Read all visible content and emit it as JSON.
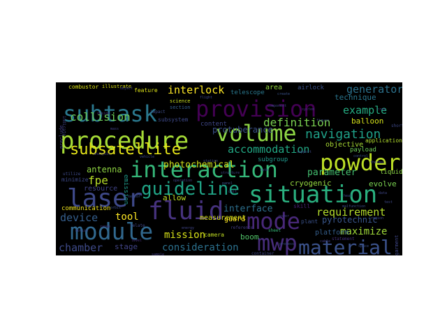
{
  "figure": {
    "type": "word_cloud",
    "background": "#000000",
    "palette": "viridis"
  },
  "words": [
    {
      "text": "procedure",
      "color": "#a5db36"
    },
    {
      "text": "volume",
      "color": "#8ed645"
    },
    {
      "text": "interaction",
      "color": "#35b779"
    },
    {
      "text": "situation",
      "color": "#2ab07f"
    },
    {
      "text": "fluid",
      "color": "#46327e"
    },
    {
      "text": "module",
      "color": "#31688e"
    },
    {
      "text": "mode",
      "color": "#482878"
    },
    {
      "text": "subtask",
      "color": "#2a788e"
    },
    {
      "text": "provision",
      "color": "#440154"
    },
    {
      "text": "laser",
      "color": "#3e4989"
    },
    {
      "text": "powder",
      "color": "#bddf26"
    },
    {
      "text": "mwp",
      "color": "#472d7b"
    },
    {
      "text": "guideline",
      "color": "#20a486"
    },
    {
      "text": "subsatellite",
      "color": "#e5e419"
    },
    {
      "text": "material",
      "color": "#3b528b"
    },
    {
      "text": "navigation",
      "color": "#1fa088"
    },
    {
      "text": "interlock",
      "color": "#fde725"
    },
    {
      "text": "accommodation",
      "color": "#22a884"
    },
    {
      "text": "collision",
      "color": "#6ccd5a"
    },
    {
      "text": "definition",
      "color": "#7ad151"
    },
    {
      "text": "example",
      "color": "#25ac82"
    },
    {
      "text": "requirement",
      "color": "#b5de2b"
    },
    {
      "text": "generator",
      "color": "#2c728e"
    },
    {
      "text": "consideration",
      "color": "#2c718e"
    },
    {
      "text": "chamber",
      "color": "#3e4a89"
    },
    {
      "text": "mission",
      "color": "#d8e219"
    },
    {
      "text": "maximize",
      "color": "#a0da39"
    },
    {
      "text": "device",
      "color": "#355f8d"
    },
    {
      "text": "antenna",
      "color": "#90d743"
    },
    {
      "text": "parameter",
      "color": "#44bf70"
    },
    {
      "text": "fpe",
      "color": "#b8de29"
    },
    {
      "text": "interface",
      "color": "#2d708e"
    },
    {
      "text": "tool",
      "color": "#fde725"
    },
    {
      "text": "photochemical",
      "color": "#d2e21b"
    },
    {
      "text": "protuberance",
      "color": "#3b528b"
    },
    {
      "text": "technique",
      "color": "#2a768e"
    },
    {
      "text": "pyrotechnic",
      "color": "#39568c"
    },
    {
      "text": "balloon",
      "color": "#d5e21a"
    },
    {
      "text": "evolve",
      "color": "#7ad151"
    },
    {
      "text": "platform",
      "color": "#355f8d"
    },
    {
      "text": "boom",
      "color": "#52c569"
    },
    {
      "text": "stage",
      "color": "#414487"
    },
    {
      "text": "cryogenic",
      "color": "#95d840"
    },
    {
      "text": "objective",
      "color": "#a8db34"
    },
    {
      "text": "allow",
      "color": "#c0df25"
    },
    {
      "text": "resource",
      "color": "#404387"
    },
    {
      "text": "measurement",
      "color": "#d8e219"
    },
    {
      "text": "guard",
      "color": "#fde725"
    },
    {
      "text": "area",
      "color": "#95d840"
    },
    {
      "text": "airlock",
      "color": "#3b528b"
    },
    {
      "text": "communication",
      "color": "#f1e51d"
    },
    {
      "text": "subgroup",
      "color": "#1f968b"
    },
    {
      "text": "liquid",
      "color": "#8bd646"
    },
    {
      "text": "payload",
      "color": "#6ece58"
    },
    {
      "text": "application",
      "color": "#b2dd2d"
    },
    {
      "text": "telescope",
      "color": "#2a788e"
    },
    {
      "text": "subsystem",
      "color": "#3e4989"
    },
    {
      "text": "content",
      "color": "#3f4788"
    },
    {
      "text": "combustor",
      "color": "#dde318"
    },
    {
      "text": "feature",
      "color": "#dde318"
    },
    {
      "text": "illustrate",
      "color": "#dde318"
    },
    {
      "text": "science",
      "color": "#cae11f"
    },
    {
      "text": "section",
      "color": "#355f8d"
    },
    {
      "text": "emission",
      "color": "#1f9a8a"
    },
    {
      "text": "minimize",
      "color": "#3e4a89"
    },
    {
      "text": "camera",
      "color": "#c2df23"
    },
    {
      "text": "plant",
      "color": "#3b528b"
    },
    {
      "text": "skill",
      "color": "#482173"
    },
    {
      "text": "impact",
      "color": "#3d4e8a"
    },
    {
      "text": "relate",
      "color": "#404688"
    },
    {
      "text": "statement",
      "color": "#46307e"
    },
    {
      "text": "reference",
      "color": "#433e85"
    },
    {
      "text": "container",
      "color": "#3f4889"
    },
    {
      "text": "sheet",
      "color": "#35b779"
    },
    {
      "text": "short",
      "color": "#3e4989"
    },
    {
      "text": "garment",
      "color": "#3f4788"
    },
    {
      "text": "object",
      "color": "#414487"
    },
    {
      "text": "create",
      "color": "#3b528b"
    },
    {
      "text": "indicate",
      "color": "#404588"
    },
    {
      "text": "preclude",
      "color": "#433e85"
    },
    {
      "text": "utilize",
      "color": "#3e4a89"
    },
    {
      "text": "figure",
      "color": "#3d4d8a"
    },
    {
      "text": "system",
      "color": "#453781"
    },
    {
      "text": "control",
      "color": "#3b528b"
    },
    {
      "text": "vehicle",
      "color": "#3e4a89"
    },
    {
      "text": "operation",
      "color": "#404688"
    },
    {
      "text": "component",
      "color": "#3f4889"
    },
    {
      "text": "analysis",
      "color": "#433e85"
    },
    {
      "text": "design",
      "color": "#46327e"
    },
    {
      "text": "structure",
      "color": "#3e4989"
    },
    {
      "text": "thermal",
      "color": "#404387"
    },
    {
      "text": "orbit",
      "color": "#3d4e8a"
    },
    {
      "text": "sensor",
      "color": "#3b528b"
    },
    {
      "text": "power",
      "color": "#433e85"
    },
    {
      "text": "data",
      "color": "#3f4788"
    },
    {
      "text": "test",
      "color": "#3e4a89"
    },
    {
      "text": "level",
      "color": "#46307e"
    },
    {
      "text": "unit",
      "color": "#404688"
    },
    {
      "text": "space",
      "color": "#3b528b"
    },
    {
      "text": "crew",
      "color": "#433e85"
    },
    {
      "text": "flight",
      "color": "#3f4889"
    },
    {
      "text": "support",
      "color": "#3e4989"
    },
    {
      "text": "mass",
      "color": "#404387"
    },
    {
      "text": "rate",
      "color": "#3d4d8a"
    },
    {
      "text": "range",
      "color": "#453781"
    },
    {
      "text": "heat",
      "color": "#3e4a89"
    },
    {
      "text": "energy",
      "color": "#404588"
    },
    {
      "text": "process",
      "color": "#3b528b"
    },
    {
      "text": "sample",
      "color": "#433e85"
    },
    {
      "text": "station",
      "color": "#3f4788"
    },
    {
      "text": "malfunction",
      "color": "#3d4e8a"
    },
    {
      "text": "region",
      "color": "#3e4989"
    },
    {
      "text": "motion",
      "color": "#404387"
    },
    {
      "text": "cable",
      "color": "#433e85"
    },
    {
      "text": "panel",
      "color": "#3b528b"
    }
  ]
}
